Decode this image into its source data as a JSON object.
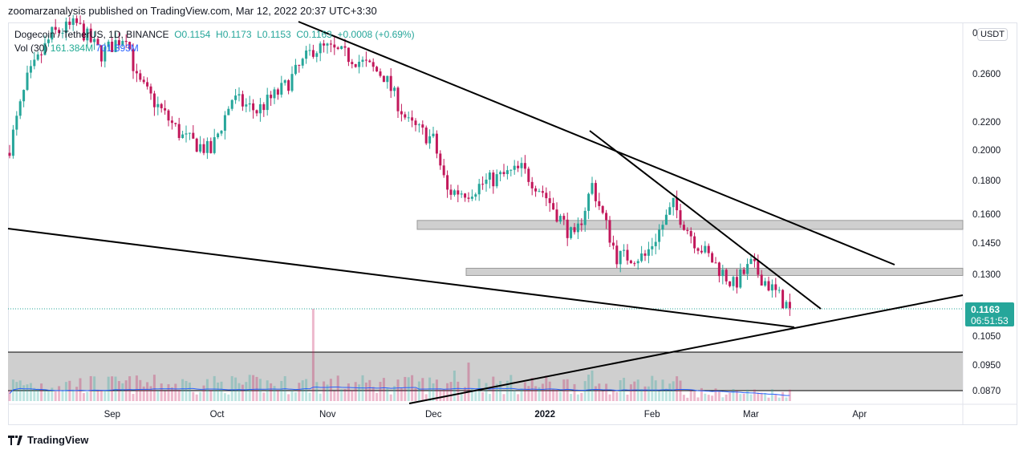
{
  "publisher_line": "zoomarzanalysis published on TradingView.com, Mar 12, 2022 20:37 UTC+3:30",
  "legend": {
    "symbol": "Dogecoin / TetherUS, 1D, BINANCE",
    "open": "O0.1154",
    "high": "H0.1173",
    "low": "L0.1153",
    "close": "C0.1163",
    "change": "+0.0008 (+0.69%)",
    "vol_label": "Vol (30)",
    "vol_value": "161.384M",
    "vol_ma": "701.393M"
  },
  "currency": "USDT",
  "axis_top_label": "0",
  "price_tag": {
    "price": "0.1163",
    "countdown": "06:51:53"
  },
  "colors": {
    "up": "#26a69a",
    "down": "#c2185b",
    "ma": "#2962ff",
    "tag": "#26a69a"
  },
  "footer_logo": "TradingView",
  "chart_data": {
    "type": "candlestick",
    "scale": "log",
    "y_ticks": [
      "0.2600",
      "0.2200",
      "0.2000",
      "0.1800",
      "0.1600",
      "0.1450",
      "0.1300",
      "0.1050",
      "0.0950",
      "0.0870"
    ],
    "y_tick_values": [
      0.26,
      0.22,
      0.2,
      0.18,
      0.16,
      0.145,
      0.13,
      0.105,
      0.095,
      0.087
    ],
    "x_ticks": [
      "Sep",
      "Oct",
      "Nov",
      "Dec",
      "2022",
      "Feb",
      "Mar",
      "Apr"
    ],
    "x_tick_days": [
      29,
      59,
      90,
      120,
      151,
      182,
      210,
      241
    ],
    "close_anchors_day_price": [
      [
        0,
        0.203
      ],
      [
        5,
        0.256
      ],
      [
        12,
        0.3
      ],
      [
        19,
        0.31
      ],
      [
        26,
        0.28
      ],
      [
        33,
        0.3
      ],
      [
        36,
        0.256
      ],
      [
        49,
        0.21
      ],
      [
        57,
        0.2
      ],
      [
        63,
        0.24
      ],
      [
        70,
        0.23
      ],
      [
        78,
        0.25
      ],
      [
        86,
        0.285
      ],
      [
        90,
        0.285
      ],
      [
        98,
        0.275
      ],
      [
        106,
        0.26
      ],
      [
        113,
        0.22
      ],
      [
        120,
        0.208
      ],
      [
        124,
        0.174
      ],
      [
        130,
        0.174
      ],
      [
        135,
        0.18
      ],
      [
        145,
        0.188
      ],
      [
        151,
        0.174
      ],
      [
        160,
        0.147
      ],
      [
        165,
        0.178
      ],
      [
        172,
        0.139
      ],
      [
        180,
        0.139
      ],
      [
        188,
        0.166
      ],
      [
        194,
        0.147
      ],
      [
        205,
        0.126
      ],
      [
        210,
        0.135
      ],
      [
        221,
        0.116
      ]
    ],
    "support_resistance_zones": [
      [
        0.1527,
        0.1575
      ],
      [
        0.1302,
        0.1335
      ]
    ]
  }
}
